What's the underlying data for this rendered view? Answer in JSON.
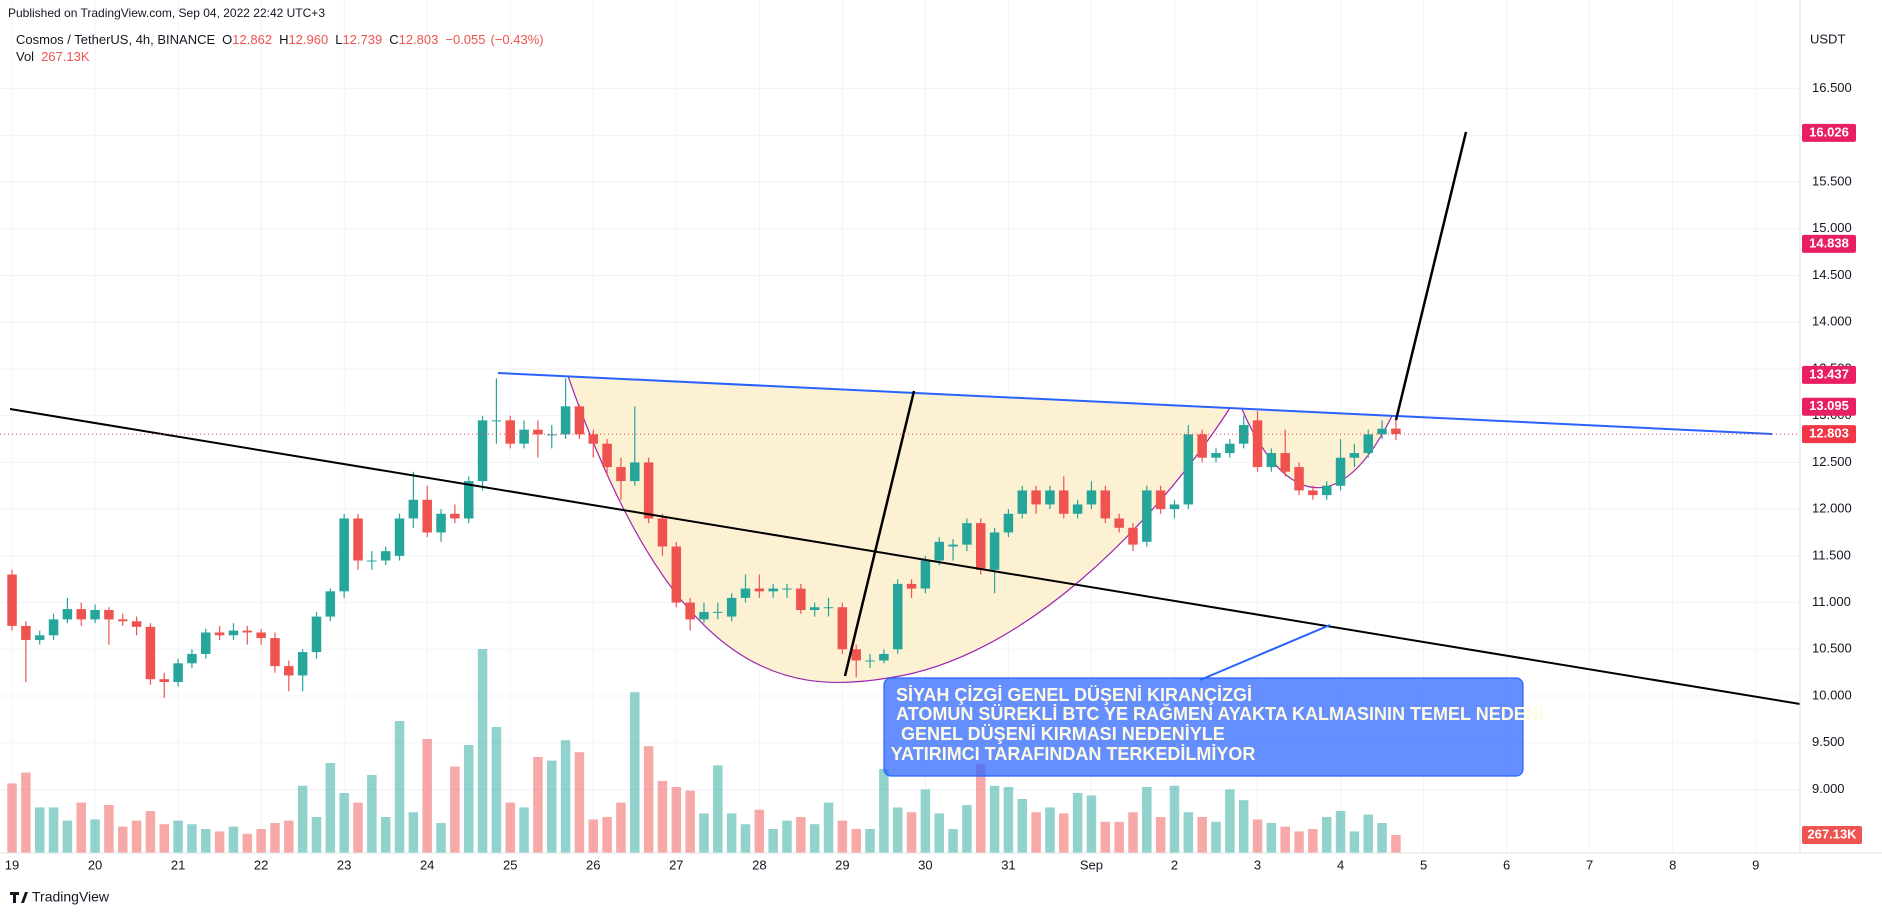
{
  "header": {
    "published": "Published on TradingView.com, Sep 04, 2022 22:42 UTC+3",
    "brand": "TradingView"
  },
  "chart_data": {
    "type": "candlestick",
    "legend": {
      "symbol": "Cosmos / TetherUS, 4h, BINANCE",
      "items": [
        {
          "key": "O",
          "value": 12.862,
          "label": "12.862"
        },
        {
          "key": "H",
          "value": 12.96,
          "label": "12.960"
        },
        {
          "key": "L",
          "value": 12.739,
          "label": "12.739"
        },
        {
          "key": "C",
          "value": 12.803,
          "label": "12.803"
        }
      ],
      "change": {
        "value": -0.055,
        "label": "−0.055"
      },
      "change_pct": {
        "value": -0.43,
        "label": "(−0.43%)"
      },
      "volume_key": "Vol"
    },
    "currency": "USDT",
    "up_color": "#26a69a",
    "down_color": "#ef5350",
    "ohlc": [
      [
        11.3,
        11.35,
        10.7,
        10.75
      ],
      [
        10.75,
        10.8,
        10.15,
        10.6
      ],
      [
        10.6,
        10.7,
        10.55,
        10.65
      ],
      [
        10.65,
        10.88,
        10.6,
        10.82
      ],
      [
        10.82,
        11.05,
        10.78,
        10.93
      ],
      [
        10.93,
        11.0,
        10.75,
        10.82
      ],
      [
        10.82,
        10.98,
        10.78,
        10.92
      ],
      [
        10.92,
        10.95,
        10.55,
        10.82
      ],
      [
        10.82,
        10.88,
        10.75,
        10.8
      ],
      [
        10.8,
        10.85,
        10.65,
        10.74
      ],
      [
        10.74,
        10.78,
        10.12,
        10.18
      ],
      [
        10.18,
        10.25,
        9.98,
        10.15
      ],
      [
        10.15,
        10.4,
        10.1,
        10.35
      ],
      [
        10.35,
        10.5,
        10.3,
        10.45
      ],
      [
        10.45,
        10.72,
        10.4,
        10.68
      ],
      [
        10.68,
        10.75,
        10.6,
        10.65
      ],
      [
        10.65,
        10.78,
        10.6,
        10.7
      ],
      [
        10.7,
        10.75,
        10.55,
        10.68
      ],
      [
        10.68,
        10.72,
        10.55,
        10.62
      ],
      [
        10.62,
        10.68,
        10.25,
        10.32
      ],
      [
        10.32,
        10.38,
        10.05,
        10.22
      ],
      [
        10.22,
        10.5,
        10.05,
        10.47
      ],
      [
        10.47,
        10.9,
        10.4,
        10.85
      ],
      [
        10.85,
        11.15,
        10.8,
        11.12
      ],
      [
        11.12,
        11.95,
        11.05,
        11.9
      ],
      [
        11.9,
        11.95,
        11.35,
        11.45
      ],
      [
        11.45,
        11.55,
        11.35,
        11.45
      ],
      [
        11.45,
        11.6,
        11.4,
        11.55
      ],
      [
        11.5,
        11.95,
        11.45,
        11.9
      ],
      [
        11.9,
        12.4,
        11.8,
        12.1
      ],
      [
        12.1,
        12.25,
        11.7,
        11.75
      ],
      [
        11.75,
        12.0,
        11.65,
        11.95
      ],
      [
        11.95,
        12.05,
        11.85,
        11.9
      ],
      [
        11.9,
        12.35,
        11.85,
        12.3
      ],
      [
        12.3,
        13.0,
        12.2,
        12.95
      ],
      [
        12.95,
        13.4,
        12.7,
        12.95
      ],
      [
        12.95,
        13.0,
        12.65,
        12.7
      ],
      [
        12.7,
        12.95,
        12.65,
        12.85
      ],
      [
        12.85,
        12.95,
        12.55,
        12.8
      ],
      [
        12.8,
        12.9,
        12.65,
        12.8
      ],
      [
        12.8,
        13.4,
        12.75,
        13.1
      ],
      [
        13.1,
        13.12,
        12.75,
        12.8
      ],
      [
        12.8,
        12.85,
        12.55,
        12.7
      ],
      [
        12.7,
        12.75,
        12.35,
        12.45
      ],
      [
        12.45,
        12.55,
        12.1,
        12.3
      ],
      [
        12.3,
        13.1,
        12.25,
        12.5
      ],
      [
        12.5,
        12.55,
        11.85,
        11.9
      ],
      [
        11.9,
        11.95,
        11.5,
        11.6
      ],
      [
        11.6,
        11.65,
        10.95,
        11.0
      ],
      [
        11.0,
        11.05,
        10.7,
        10.82
      ],
      [
        10.82,
        11.0,
        10.78,
        10.9
      ],
      [
        10.9,
        11.0,
        10.82,
        10.9
      ],
      [
        10.85,
        11.1,
        10.8,
        11.05
      ],
      [
        11.05,
        11.3,
        11.0,
        11.15
      ],
      [
        11.15,
        11.3,
        11.05,
        11.12
      ],
      [
        11.12,
        11.2,
        11.05,
        11.15
      ],
      [
        11.15,
        11.2,
        11.05,
        11.15
      ],
      [
        11.15,
        11.2,
        10.88,
        10.92
      ],
      [
        10.92,
        11.0,
        10.85,
        10.95
      ],
      [
        10.95,
        11.05,
        10.85,
        10.95
      ],
      [
        10.95,
        11.0,
        10.45,
        10.5
      ],
      [
        10.5,
        10.55,
        10.2,
        10.38
      ],
      [
        10.38,
        10.45,
        10.3,
        10.38
      ],
      [
        10.38,
        10.5,
        10.35,
        10.45
      ],
      [
        10.5,
        11.25,
        10.45,
        11.2
      ],
      [
        11.2,
        11.25,
        11.05,
        11.15
      ],
      [
        11.15,
        11.5,
        11.1,
        11.45
      ],
      [
        11.45,
        11.7,
        11.4,
        11.65
      ],
      [
        11.6,
        11.68,
        11.45,
        11.62
      ],
      [
        11.62,
        11.9,
        11.55,
        11.85
      ],
      [
        11.85,
        11.9,
        11.3,
        11.35
      ],
      [
        11.35,
        11.8,
        11.1,
        11.75
      ],
      [
        11.75,
        12.0,
        11.7,
        11.95
      ],
      [
        11.95,
        12.25,
        11.9,
        12.2
      ],
      [
        12.2,
        12.25,
        11.95,
        12.05
      ],
      [
        12.05,
        12.25,
        12.0,
        12.2
      ],
      [
        12.2,
        12.35,
        11.9,
        11.95
      ],
      [
        11.95,
        12.1,
        11.9,
        12.05
      ],
      [
        12.05,
        12.3,
        12.0,
        12.2
      ],
      [
        12.2,
        12.25,
        11.85,
        11.9
      ],
      [
        11.9,
        11.95,
        11.75,
        11.8
      ],
      [
        11.8,
        11.85,
        11.55,
        11.62
      ],
      [
        11.65,
        12.25,
        11.6,
        12.2
      ],
      [
        12.2,
        12.25,
        11.95,
        12.0
      ],
      [
        12.0,
        12.1,
        11.9,
        12.05
      ],
      [
        12.05,
        12.9,
        12.0,
        12.8
      ],
      [
        12.8,
        12.85,
        12.5,
        12.55
      ],
      [
        12.55,
        12.65,
        12.5,
        12.6
      ],
      [
        12.6,
        12.75,
        12.55,
        12.7
      ],
      [
        12.7,
        13.0,
        12.65,
        12.9
      ],
      [
        12.95,
        13.05,
        12.4,
        12.45
      ],
      [
        12.45,
        12.65,
        12.4,
        12.6
      ],
      [
        12.6,
        12.85,
        12.35,
        12.4
      ],
      [
        12.45,
        12.5,
        12.15,
        12.2
      ],
      [
        12.2,
        12.25,
        12.1,
        12.15
      ],
      [
        12.15,
        12.3,
        12.1,
        12.25
      ],
      [
        12.25,
        12.75,
        12.2,
        12.55
      ],
      [
        12.55,
        12.7,
        12.45,
        12.6
      ],
      [
        12.6,
        12.85,
        12.55,
        12.8
      ],
      [
        12.8,
        12.95,
        12.75,
        12.86
      ],
      [
        12.862,
        12.96,
        12.739,
        12.803
      ]
    ],
    "volumes": [
      1032,
      1193,
      676,
      676,
      481,
      748,
      498,
      712,
      392,
      481,
      623,
      427,
      481,
      427,
      356,
      320,
      392,
      285,
      356,
      445,
      481,
      997,
      534,
      1335,
      890,
      748,
      1157,
      534,
      1958,
      605,
      1691,
      445,
      1282,
      1602,
      3026,
      1869,
      748,
      676,
      1424,
      1371,
      1673,
      1495,
      498,
      534,
      748,
      2385,
      1584,
      1068,
      979,
      926,
      587,
      1299,
      587,
      427,
      641,
      356,
      481,
      534,
      427,
      748,
      481,
      356,
      356,
      1246,
      676,
      605,
      943,
      587,
      356,
      712,
      1317,
      997,
      979,
      801,
      605,
      676,
      587,
      890,
      854,
      463,
      463,
      605,
      979,
      534,
      997,
      605,
      534,
      463,
      943,
      783,
      498,
      445,
      392,
      320,
      356,
      534,
      623,
      320,
      570,
      445,
      267.13
    ],
    "last_volume": {
      "value": 267.13,
      "label": "267.13K"
    },
    "xlim": [
      -0.87,
      129.2
    ],
    "xticks": [
      {
        "value": 0,
        "label": "19"
      },
      {
        "value": 6,
        "label": "20"
      },
      {
        "value": 12,
        "label": "21"
      },
      {
        "value": 18,
        "label": "22"
      },
      {
        "value": 24,
        "label": "23"
      },
      {
        "value": 30,
        "label": "24"
      },
      {
        "value": 36,
        "label": "25"
      },
      {
        "value": 42,
        "label": "26"
      },
      {
        "value": 48,
        "label": "27"
      },
      {
        "value": 54,
        "label": "28"
      },
      {
        "value": 60,
        "label": "29"
      },
      {
        "value": 66,
        "label": "30"
      },
      {
        "value": 72,
        "label": "31"
      },
      {
        "value": 78,
        "label": "Sep"
      },
      {
        "value": 84,
        "label": "2"
      },
      {
        "value": 90,
        "label": "3"
      },
      {
        "value": 96,
        "label": "4"
      },
      {
        "value": 102,
        "label": "5"
      },
      {
        "value": 108,
        "label": "6"
      },
      {
        "value": 114,
        "label": "7"
      },
      {
        "value": 120,
        "label": "8"
      },
      {
        "value": 126,
        "label": "9"
      }
    ],
    "ylim": [
      8.32,
      17.17
    ],
    "yticks": [
      {
        "value": 9,
        "label": "9.000"
      },
      {
        "value": 9.5,
        "label": "9.500"
      },
      {
        "value": 10,
        "label": "10.000"
      },
      {
        "value": 10.5,
        "label": "10.500"
      },
      {
        "value": 11,
        "label": "11.000"
      },
      {
        "value": 11.5,
        "label": "11.500"
      },
      {
        "value": 12,
        "label": "12.000"
      },
      {
        "value": 12.5,
        "label": "12.500"
      },
      {
        "value": 13,
        "label": "13.000"
      },
      {
        "value": 13.5,
        "label": "13.500"
      },
      {
        "value": 14,
        "label": "14.000"
      },
      {
        "value": 14.5,
        "label": "14.500"
      },
      {
        "value": 15,
        "label": "15.000"
      },
      {
        "value": 15.5,
        "label": "15.500"
      },
      {
        "value": 16,
        "label": "16.000"
      },
      {
        "value": 16.5,
        "label": "16.500"
      }
    ],
    "grid": true,
    "price_markers": [
      {
        "value": 16.026,
        "color": "#e91e63"
      },
      {
        "value": 14.838,
        "color": "#e91e63"
      },
      {
        "value": 13.437,
        "color": "#e91e63"
      },
      {
        "value": 13.095,
        "color": "#e91e63"
      },
      {
        "value": 12.803,
        "color": "#f23645",
        "line": true
      }
    ],
    "annotation": {
      "lines": [
        "SİYAH ÇİZGİ GENEL DÜŞENİ KIRANÇİZGİ",
        "ATOMUN SÜREKLİ BTC YE RAĞMEN AYAKTA KALMASININ TEMEL NEDENİ",
        " GENEL DÜŞENİ KIRMASI NEDENİYLE",
        " YATIRIMCI TARAFINDAN TERKEDİLMİYOR"
      ]
    }
  }
}
